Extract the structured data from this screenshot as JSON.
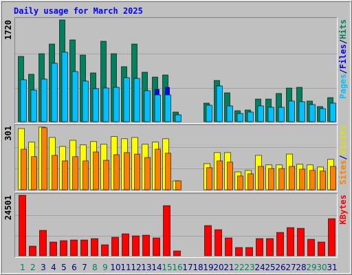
{
  "chart_data": [
    {
      "type": "bar",
      "title": "Daily usage for March 2025",
      "ylim": [
        0,
        1720
      ],
      "yticks": [
        1720
      ],
      "grid": true,
      "legend_separator": "/",
      "series": [
        {
          "name": "Hits",
          "color": "#00805c",
          "values": [
            1104,
            802,
            1150,
            1313,
            1720,
            1383,
            1127,
            825,
            1360,
            1150,
            930,
            1313,
            837,
            755,
            790,
            163,
            null,
            null,
            314,
            697,
            488,
            186,
            198,
            383,
            383,
            477,
            569,
            581,
            349,
            256,
            407
          ]
        },
        {
          "name": "Files",
          "color": "#0000ff",
          "values": [
            709,
            535,
            720,
            988,
            1174,
            848,
            686,
            558,
            569,
            581,
            744,
            732,
            523,
            546,
            581,
            116,
            null,
            null,
            279,
            604,
            267,
            139,
            163,
            267,
            244,
            244,
            349,
            337,
            290,
            221,
            314
          ]
        },
        {
          "name": "Pages",
          "color": "#00c0ff",
          "values": [
            709,
            535,
            720,
            988,
            1174,
            848,
            686,
            558,
            569,
            581,
            744,
            732,
            523,
            453,
            453,
            116,
            null,
            null,
            279,
            604,
            267,
            139,
            163,
            267,
            244,
            244,
            349,
            337,
            290,
            221,
            314
          ]
        }
      ]
    },
    {
      "type": "bar",
      "ylim": [
        0,
        301
      ],
      "yticks": [
        301
      ],
      "grid": true,
      "legend_separator": "/",
      "series": [
        {
          "name": "Visits",
          "color": "#ffff00",
          "values": [
            288,
            224,
            295,
            246,
            204,
            233,
            211,
            227,
            214,
            250,
            240,
            246,
            214,
            224,
            240,
            42,
            null,
            null,
            123,
            175,
            175,
            84,
            91,
            162,
            117,
            117,
            168,
            120,
            117,
            107,
            143
          ]
        },
        {
          "name": "Sites",
          "color": "#ff8000",
          "values": [
            191,
            156,
            292,
            162,
            136,
            156,
            136,
            178,
            139,
            165,
            175,
            168,
            152,
            191,
            172,
            42,
            null,
            null,
            104,
            136,
            130,
            65,
            75,
            110,
            100,
            100,
            110,
            97,
            91,
            88,
            110
          ]
        }
      ]
    },
    {
      "type": "bar",
      "ylim": [
        0,
        24501
      ],
      "yticks": [
        24501
      ],
      "grid": true,
      "categories": [
        "1",
        "2",
        "3",
        "4",
        "5",
        "6",
        "7",
        "8",
        "9",
        "10",
        "11",
        "12",
        "13",
        "14",
        "15",
        "16",
        "17",
        "18",
        "19",
        "20",
        "21",
        "22",
        "23",
        "24",
        "25",
        "26",
        "27",
        "28",
        "29",
        "30",
        "31"
      ],
      "category_colors": [
        "#00805c",
        "#00805c",
        "#000080",
        "#000080",
        "#000080",
        "#000080",
        "#000080",
        "#00805c",
        "#00805c",
        "#000080",
        "#000080",
        "#000080",
        "#000080",
        "#000080",
        "#00805c",
        "#00805c",
        "#000080",
        "#000080",
        "#000080",
        "#000080",
        "#000080",
        "#00805c",
        "#00805c",
        "#000080",
        "#000080",
        "#000080",
        "#000080",
        "#000080",
        "#00805c",
        "#00805c",
        "#000080"
      ],
      "series": [
        {
          "name": "KBytes",
          "color": "#ff0000",
          "values": [
            24501,
            3892,
            10286,
            5560,
            6116,
            6394,
            6394,
            6950,
            4448,
            7506,
            8896,
            8062,
            8340,
            7228,
            20294,
            1946,
            null,
            null,
            12232,
            10564,
            7228,
            3336,
            3336,
            6950,
            6950,
            9452,
            11398,
            11120,
            6672,
            5560,
            15012
          ]
        }
      ]
    }
  ]
}
